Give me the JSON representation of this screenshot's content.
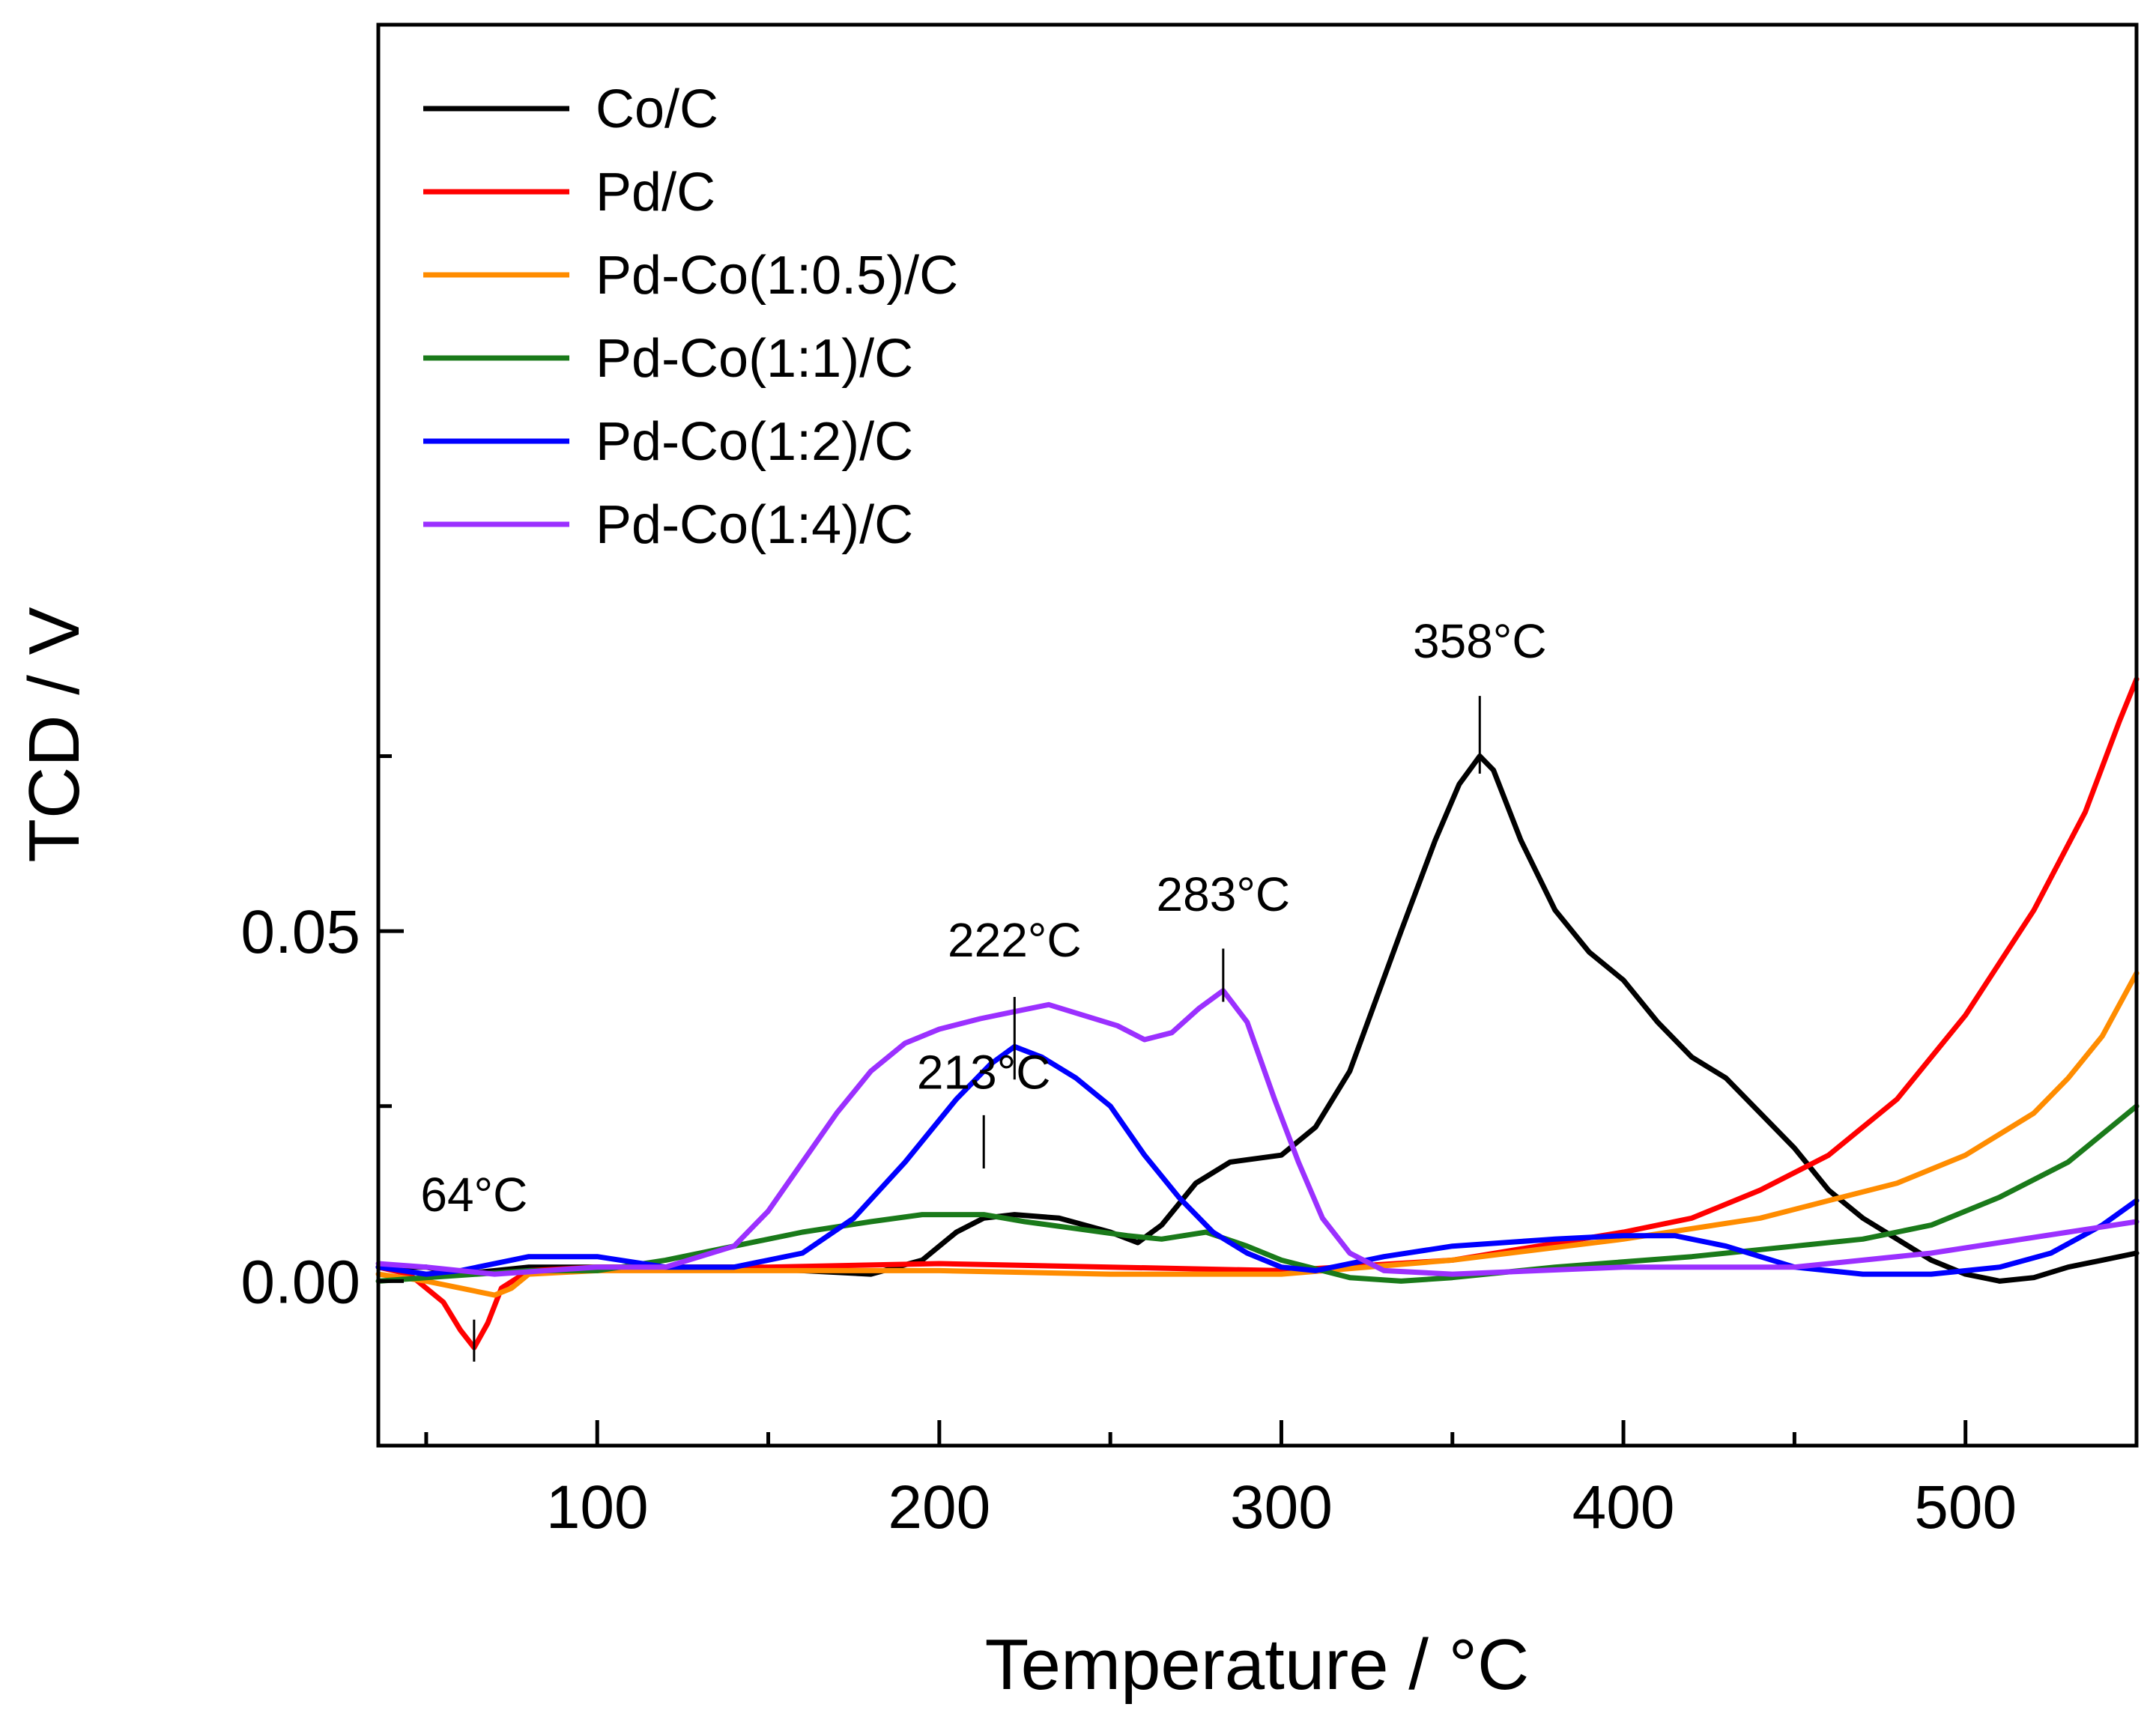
{
  "chart_data": {
    "type": "line",
    "title": "",
    "xlabel": "Temperature / °C",
    "ylabel": "TCD / V",
    "xlim": [
      36,
      550
    ],
    "ylim": [
      -0.0235,
      0.1795
    ],
    "x_ticks": [
      {
        "value": 100,
        "label": "100"
      },
      {
        "value": 200,
        "label": "200"
      },
      {
        "value": 300,
        "label": "300"
      },
      {
        "value": 400,
        "label": "400"
      },
      {
        "value": 500,
        "label": "500"
      }
    ],
    "x_minor_ticks": [
      50,
      150,
      250,
      350,
      450,
      550
    ],
    "y_ticks": [
      {
        "value": 0.0,
        "label": "0.00"
      },
      {
        "value": 0.05,
        "label": "0.05"
      }
    ],
    "y_minor_ticks": [
      0.025,
      0.075
    ],
    "grid": false,
    "legend_position": "top-left",
    "series": [
      {
        "name": "Co/C",
        "color": "#000000",
        "points": [
          [
            36,
            0.002
          ],
          [
            50,
            0.002
          ],
          [
            60,
            0.001
          ],
          [
            80,
            0.002
          ],
          [
            100,
            0.002
          ],
          [
            120,
            0.002
          ],
          [
            140,
            0.002
          ],
          [
            160,
            0.0015
          ],
          [
            180,
            0.001
          ],
          [
            195,
            0.003
          ],
          [
            205,
            0.007
          ],
          [
            213,
            0.009
          ],
          [
            222,
            0.0095
          ],
          [
            235,
            0.009
          ],
          [
            250,
            0.007
          ],
          [
            258,
            0.0055
          ],
          [
            265,
            0.008
          ],
          [
            275,
            0.014
          ],
          [
            285,
            0.017
          ],
          [
            300,
            0.018
          ],
          [
            310,
            0.022
          ],
          [
            320,
            0.03
          ],
          [
            335,
            0.05
          ],
          [
            345,
            0.063
          ],
          [
            352,
            0.071
          ],
          [
            358,
            0.075
          ],
          [
            362,
            0.073
          ],
          [
            370,
            0.063
          ],
          [
            380,
            0.053
          ],
          [
            390,
            0.047
          ],
          [
            400,
            0.043
          ],
          [
            410,
            0.037
          ],
          [
            420,
            0.032
          ],
          [
            430,
            0.029
          ],
          [
            440,
            0.024
          ],
          [
            450,
            0.019
          ],
          [
            460,
            0.013
          ],
          [
            470,
            0.009
          ],
          [
            480,
            0.006
          ],
          [
            490,
            0.003
          ],
          [
            500,
            0.001
          ],
          [
            510,
            0.0
          ],
          [
            520,
            0.0005
          ],
          [
            530,
            0.002
          ],
          [
            540,
            0.003
          ],
          [
            550,
            0.004
          ]
        ]
      },
      {
        "name": "Pd/C",
        "color": "#ff0000",
        "points": [
          [
            36,
            0.002
          ],
          [
            45,
            0.001
          ],
          [
            55,
            -0.003
          ],
          [
            60,
            -0.007
          ],
          [
            64,
            -0.0095
          ],
          [
            68,
            -0.006
          ],
          [
            72,
            -0.001
          ],
          [
            80,
            0.0015
          ],
          [
            100,
            0.002
          ],
          [
            150,
            0.002
          ],
          [
            200,
            0.0025
          ],
          [
            250,
            0.002
          ],
          [
            300,
            0.0015
          ],
          [
            350,
            0.003
          ],
          [
            400,
            0.007
          ],
          [
            420,
            0.009
          ],
          [
            440,
            0.013
          ],
          [
            460,
            0.018
          ],
          [
            480,
            0.026
          ],
          [
            500,
            0.038
          ],
          [
            520,
            0.053
          ],
          [
            535,
            0.067
          ],
          [
            545,
            0.08
          ],
          [
            550,
            0.086
          ]
        ]
      },
      {
        "name": "Pd-Co(1:0.5)/C",
        "color": "#ff8c00",
        "points": [
          [
            36,
            0.001
          ],
          [
            50,
            0.0
          ],
          [
            60,
            -0.001
          ],
          [
            70,
            -0.002
          ],
          [
            75,
            -0.001
          ],
          [
            80,
            0.001
          ],
          [
            100,
            0.0015
          ],
          [
            150,
            0.0015
          ],
          [
            200,
            0.0015
          ],
          [
            250,
            0.001
          ],
          [
            300,
            0.001
          ],
          [
            350,
            0.003
          ],
          [
            400,
            0.006
          ],
          [
            440,
            0.009
          ],
          [
            460,
            0.0115
          ],
          [
            480,
            0.014
          ],
          [
            500,
            0.018
          ],
          [
            520,
            0.024
          ],
          [
            530,
            0.029
          ],
          [
            540,
            0.035
          ],
          [
            550,
            0.044
          ]
        ]
      },
      {
        "name": "Pd-Co(1:1)/C",
        "color": "#1a7a1a",
        "points": [
          [
            36,
            0.0
          ],
          [
            50,
            0.0005
          ],
          [
            80,
            0.0015
          ],
          [
            100,
            0.0015
          ],
          [
            120,
            0.003
          ],
          [
            140,
            0.005
          ],
          [
            160,
            0.007
          ],
          [
            180,
            0.0085
          ],
          [
            195,
            0.0095
          ],
          [
            205,
            0.0095
          ],
          [
            213,
            0.0095
          ],
          [
            225,
            0.0085
          ],
          [
            240,
            0.0075
          ],
          [
            255,
            0.0065
          ],
          [
            265,
            0.006
          ],
          [
            278,
            0.007
          ],
          [
            290,
            0.005
          ],
          [
            300,
            0.003
          ],
          [
            320,
            0.0005
          ],
          [
            335,
            0.0
          ],
          [
            350,
            0.0005
          ],
          [
            380,
            0.002
          ],
          [
            420,
            0.0035
          ],
          [
            450,
            0.005
          ],
          [
            470,
            0.006
          ],
          [
            490,
            0.008
          ],
          [
            510,
            0.012
          ],
          [
            530,
            0.017
          ],
          [
            540,
            0.021
          ],
          [
            550,
            0.025
          ]
        ]
      },
      {
        "name": "Pd-Co(1:2)/C",
        "color": "#0000ff",
        "points": [
          [
            36,
            0.002
          ],
          [
            50,
            0.001
          ],
          [
            60,
            0.0015
          ],
          [
            80,
            0.0035
          ],
          [
            100,
            0.0035
          ],
          [
            120,
            0.002
          ],
          [
            140,
            0.002
          ],
          [
            160,
            0.004
          ],
          [
            175,
            0.009
          ],
          [
            190,
            0.017
          ],
          [
            205,
            0.026
          ],
          [
            215,
            0.031
          ],
          [
            222,
            0.0335
          ],
          [
            230,
            0.032
          ],
          [
            240,
            0.029
          ],
          [
            250,
            0.025
          ],
          [
            260,
            0.018
          ],
          [
            270,
            0.012
          ],
          [
            280,
            0.007
          ],
          [
            290,
            0.004
          ],
          [
            300,
            0.002
          ],
          [
            310,
            0.0015
          ],
          [
            330,
            0.0035
          ],
          [
            350,
            0.005
          ],
          [
            380,
            0.006
          ],
          [
            400,
            0.0065
          ],
          [
            415,
            0.0065
          ],
          [
            430,
            0.005
          ],
          [
            450,
            0.002
          ],
          [
            470,
            0.001
          ],
          [
            490,
            0.001
          ],
          [
            510,
            0.002
          ],
          [
            525,
            0.004
          ],
          [
            540,
            0.008
          ],
          [
            550,
            0.0115
          ]
        ]
      },
      {
        "name": "Pd-Co(1:4)/C",
        "color": "#9b30ff",
        "points": [
          [
            36,
            0.0025
          ],
          [
            50,
            0.002
          ],
          [
            70,
            0.001
          ],
          [
            100,
            0.002
          ],
          [
            120,
            0.002
          ],
          [
            140,
            0.005
          ],
          [
            150,
            0.01
          ],
          [
            160,
            0.017
          ],
          [
            170,
            0.024
          ],
          [
            180,
            0.03
          ],
          [
            190,
            0.034
          ],
          [
            200,
            0.036
          ],
          [
            212,
            0.0375
          ],
          [
            222,
            0.0385
          ],
          [
            232,
            0.0395
          ],
          [
            242,
            0.038
          ],
          [
            252,
            0.0365
          ],
          [
            260,
            0.0345
          ],
          [
            268,
            0.0355
          ],
          [
            276,
            0.039
          ],
          [
            283,
            0.0415
          ],
          [
            290,
            0.037
          ],
          [
            298,
            0.026
          ],
          [
            305,
            0.017
          ],
          [
            312,
            0.009
          ],
          [
            320,
            0.004
          ],
          [
            330,
            0.0015
          ],
          [
            350,
            0.001
          ],
          [
            400,
            0.002
          ],
          [
            450,
            0.002
          ],
          [
            470,
            0.003
          ],
          [
            490,
            0.004
          ],
          [
            510,
            0.0055
          ],
          [
            530,
            0.007
          ],
          [
            550,
            0.0085
          ]
        ]
      }
    ],
    "annotations": [
      {
        "text": "64°C",
        "x": 64,
        "y": -0.0095,
        "label_x": 64,
        "label_y": 0.01,
        "line_from": -0.0115,
        "line_to": -0.0055
      },
      {
        "text": "213°C",
        "x": 213,
        "y": 0.0095,
        "label_x": 213,
        "label_y": 0.0275,
        "line_from": 0.0161,
        "line_to": 0.0237
      },
      {
        "text": "222°C",
        "x": 222,
        "y": 0.0385,
        "label_x": 222,
        "label_y": 0.0464,
        "line_from": 0.0288,
        "line_to": 0.0406
      },
      {
        "text": "283°C",
        "x": 283,
        "y": 0.0415,
        "label_x": 283,
        "label_y": 0.0529,
        "line_from": 0.0399,
        "line_to": 0.0475
      },
      {
        "text": "358°C",
        "x": 358,
        "y": 0.075,
        "label_x": 358,
        "label_y": 0.0891,
        "line_from": 0.0725,
        "line_to": 0.0836
      }
    ]
  }
}
